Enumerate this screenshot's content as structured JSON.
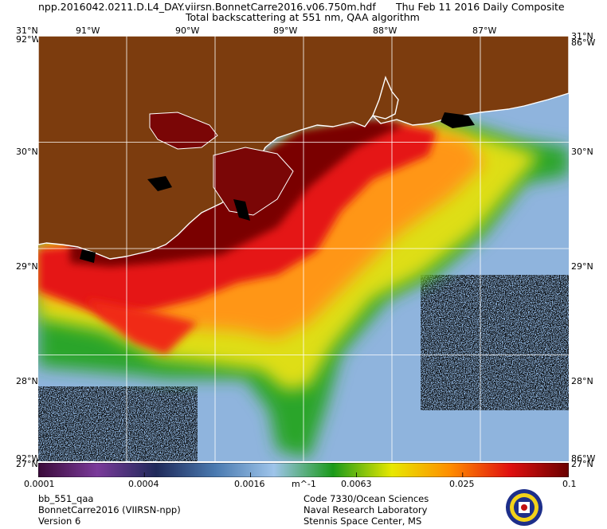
{
  "header": {
    "line1_left": "npp.2016042.0211.D.L4_DAY.viirsn.BonnetCarre2016.v06.750m.hdf",
    "line1_right": "Thu Feb 11 2016 Daily Composite",
    "line2": "Total backscattering at 551 nm, QAA algorithm"
  },
  "axes": {
    "top_labels": [
      "31°N",
      "91°W",
      "90°W",
      "89°W",
      "88°W",
      "87°W",
      "31°N"
    ],
    "left_labels": [
      "30°N",
      "29°N",
      "28°N"
    ],
    "right_labels": [
      "30°N",
      "29°N",
      "28°N"
    ],
    "corner_top_left": "92°W",
    "corner_top_right": "86°W",
    "corner_bottom_left": "92°W",
    "corner_bottom_right": "86°W",
    "corner_bottom_left_under": "27°N",
    "corner_bottom_right_under": "27°N"
  },
  "map": {
    "lon_range": [
      -92,
      -86
    ],
    "lat_range": [
      27,
      31
    ],
    "land_color": "#7c3c0e",
    "ocean_color": "#8fb4dd",
    "coast_color": "#ffffff",
    "grid_color": "#ffffff"
  },
  "colorbar": {
    "tick_labels": [
      "0.0001",
      "0.0004",
      "0.0016",
      "0.0063",
      "0.025",
      "0.1"
    ],
    "unit": "m^-1",
    "scale": "log",
    "range": [
      0.0001,
      0.1
    ],
    "stops": [
      "#3a0a3a",
      "#7a3a9a",
      "#1f2a5a",
      "#4a7ab0",
      "#9ec4ea",
      "#1a9a1a",
      "#e8e800",
      "#ff8c00",
      "#e01010",
      "#6a0000"
    ]
  },
  "footer": {
    "left": [
      "bb_551_qaa",
      "BonnetCarre2016 (VIIRSN-npp)",
      "Version 6"
    ],
    "center": [
      "Code 7330/Ocean Sciences",
      "Naval Research Laboratory",
      "Stennis Space Center, MS"
    ]
  },
  "seal": {
    "label": "Naval Research Laboratory seal",
    "ring_color": "#1d2f8a",
    "fill_color": "#f2d21a"
  }
}
